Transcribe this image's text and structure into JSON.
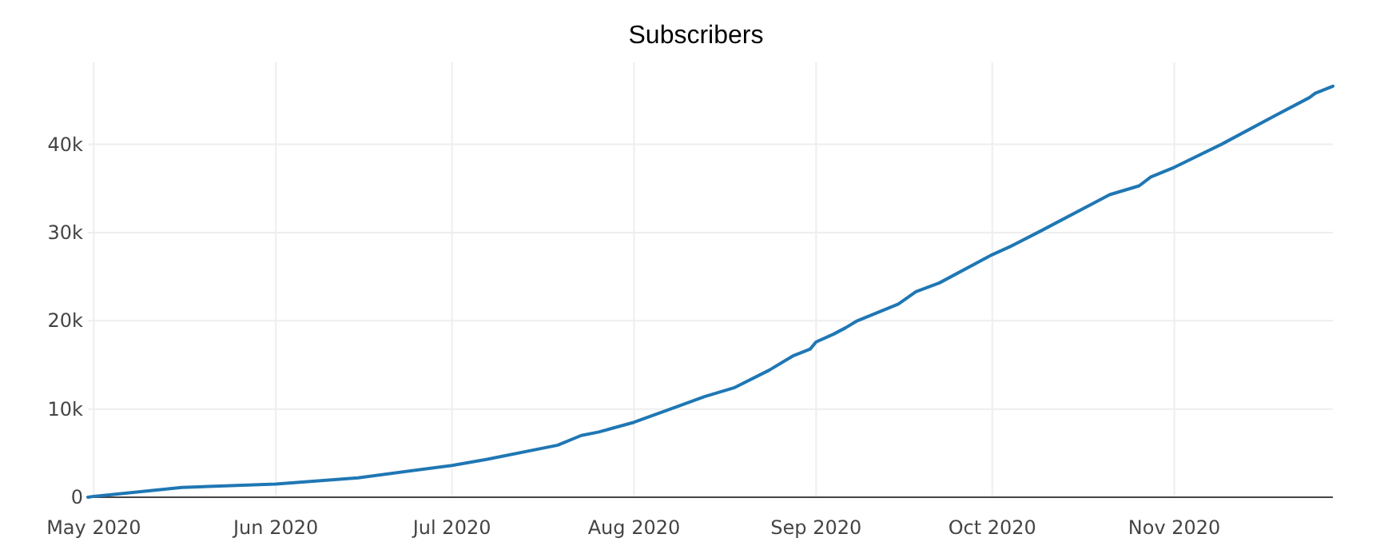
{
  "chart_data": {
    "type": "line",
    "title": "Subscribers",
    "x": [
      "2020-04-30",
      "2020-05-01",
      "2020-05-16",
      "2020-06-01",
      "2020-06-15",
      "2020-07-01",
      "2020-07-07",
      "2020-07-19",
      "2020-07-23",
      "2020-07-26",
      "2020-08-01",
      "2020-08-13",
      "2020-08-18",
      "2020-08-24",
      "2020-08-28",
      "2020-08-31",
      "2020-09-01",
      "2020-09-04",
      "2020-09-06",
      "2020-09-08",
      "2020-09-15",
      "2020-09-18",
      "2020-09-22",
      "2020-10-01",
      "2020-10-04",
      "2020-10-09",
      "2020-10-21",
      "2020-10-26",
      "2020-10-28",
      "2020-11-01",
      "2020-11-09",
      "2020-11-18",
      "2020-11-24",
      "2020-11-25",
      "2020-11-28"
    ],
    "series": [
      {
        "color": "#1f77b4",
        "values": [
          0,
          100,
          1100,
          1500,
          2200,
          3600,
          4300,
          5900,
          7000,
          7400,
          8500,
          11400,
          12400,
          14400,
          16000,
          16800,
          17600,
          18500,
          19200,
          20000,
          21900,
          23300,
          24300,
          27500,
          28400,
          30100,
          34300,
          35300,
          36300,
          37400,
          40000,
          43200,
          45300,
          45800,
          46600
        ]
      }
    ],
    "xlim": [
      "2020-04-30",
      "2020-11-28"
    ],
    "xticks": [
      {
        "value": "2020-05-01",
        "label": "May 2020"
      },
      {
        "value": "2020-06-01",
        "label": "Jun 2020"
      },
      {
        "value": "2020-07-01",
        "label": "Jul 2020"
      },
      {
        "value": "2020-08-01",
        "label": "Aug 2020"
      },
      {
        "value": "2020-09-01",
        "label": "Sep 2020"
      },
      {
        "value": "2020-10-01",
        "label": "Oct 2020"
      },
      {
        "value": "2020-11-01",
        "label": "Nov 2020"
      }
    ],
    "ylim": [
      0,
      49300
    ],
    "yticks": [
      0,
      {
        "value": 10000,
        "label": "10k"
      },
      {
        "value": 20000,
        "label": "20k"
      },
      {
        "value": 30000,
        "label": "30k"
      },
      {
        "value": 40000,
        "label": "40k"
      }
    ],
    "grid": true,
    "marker": "none",
    "line_style": "solid"
  }
}
